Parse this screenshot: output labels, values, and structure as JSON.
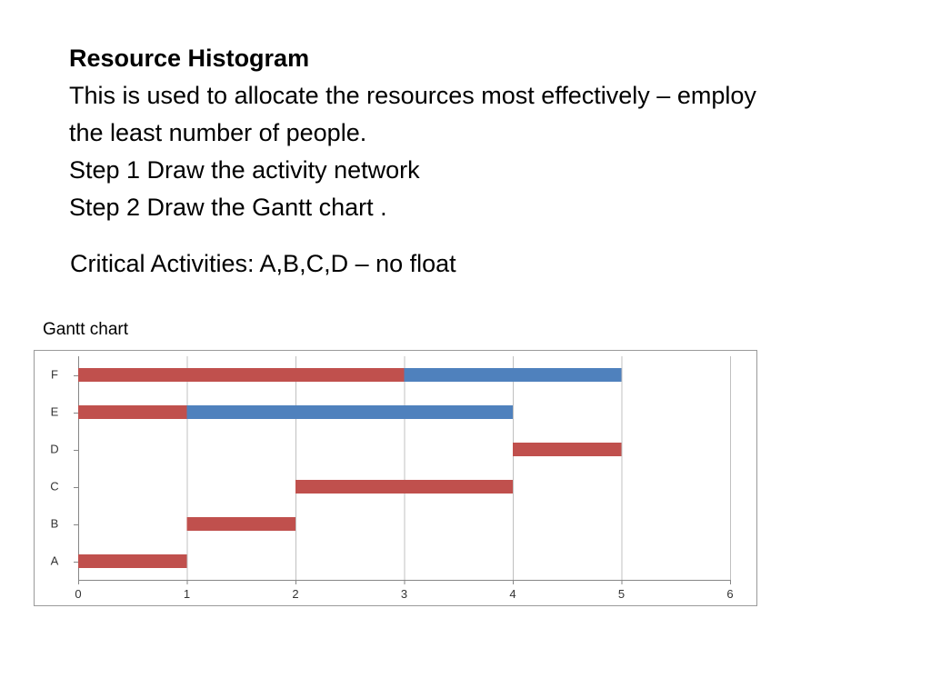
{
  "slide": {
    "title": "Resource Histogram",
    "lines": [
      "This is used to allocate the resources most effectively – employ",
      "the least number of people.",
      "Step 1 Draw the activity network",
      "Step 2 Draw the Gantt chart ."
    ],
    "critical": "Critical Activities: A,B,C,D – no float",
    "chart_caption": "Gantt chart"
  },
  "colors": {
    "critical_bar": "#c0504d",
    "float_bar": "#4f81bd",
    "gridline": "#c0c0c0",
    "axis": "#868686"
  },
  "chart_data": {
    "type": "bar",
    "orientation": "horizontal",
    "stacked": true,
    "title": "",
    "xlabel": "",
    "ylabel": "",
    "categories": [
      "A",
      "B",
      "C",
      "D",
      "E",
      "F"
    ],
    "xlim": [
      0,
      6
    ],
    "x_ticks": [
      "0",
      "1",
      "2",
      "3",
      "4",
      "5",
      "6"
    ],
    "grid": true,
    "legend": "none",
    "series": [
      {
        "color": "#c0504d",
        "bars": [
          {
            "category": "A",
            "start": 0,
            "end": 1
          },
          {
            "category": "B",
            "start": 1,
            "end": 2
          },
          {
            "category": "C",
            "start": 2,
            "end": 4
          },
          {
            "category": "D",
            "start": 4,
            "end": 5
          },
          {
            "category": "E",
            "start": 0,
            "end": 1
          },
          {
            "category": "F",
            "start": 0,
            "end": 3
          }
        ]
      },
      {
        "color": "#4f81bd",
        "bars": [
          {
            "category": "E",
            "start": 1,
            "end": 4
          },
          {
            "category": "F",
            "start": 3,
            "end": 5
          }
        ]
      }
    ]
  }
}
